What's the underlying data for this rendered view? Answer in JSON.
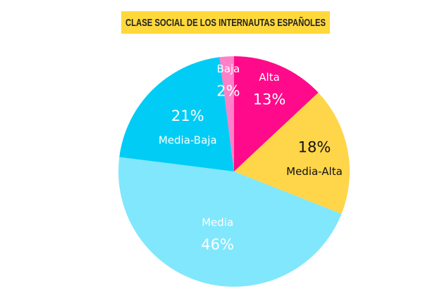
{
  "chart_data": {
    "type": "pie",
    "title": "CLASE SOCIAL DE LOS INTERNAUTAS ESPAÑOLES",
    "categories": [
      "Alta",
      "Media-Alta",
      "Media",
      "Media-Baja",
      "Baja"
    ],
    "values": [
      13,
      18,
      46,
      21,
      2
    ],
    "value_labels": [
      "13%",
      "18%",
      "46%",
      "21%",
      "2%"
    ],
    "colors": [
      "#ff0a8a",
      "#ffd54a",
      "#80e7fc",
      "#00ccf5",
      "#ff80c8"
    ]
  }
}
